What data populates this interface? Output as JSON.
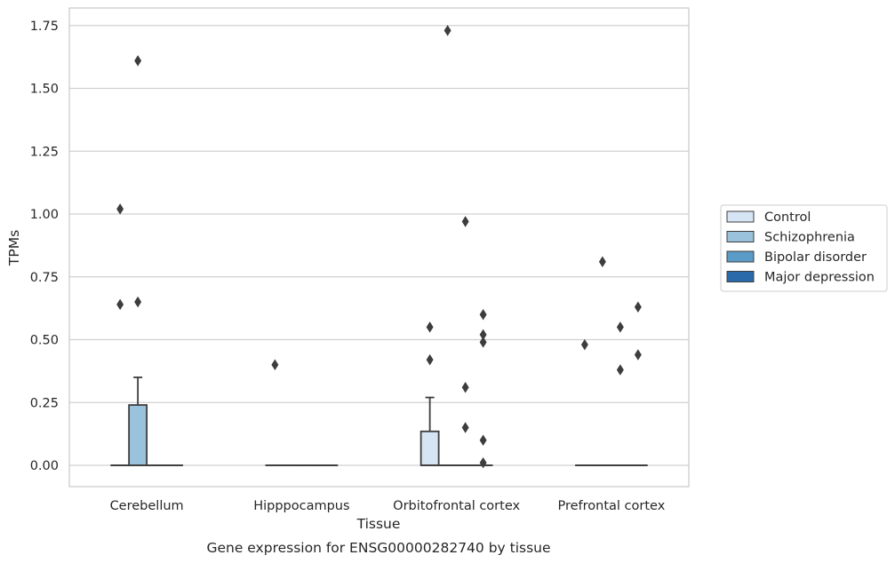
{
  "chart_data": {
    "type": "boxplot",
    "title": "",
    "caption": "Gene expression for ENSG00000282740 by tissue",
    "xlabel": "Tissue",
    "ylabel": "TPMs",
    "ylim": [
      -0.085,
      1.82
    ],
    "yticks": [
      0.0,
      0.25,
      0.5,
      0.75,
      1.0,
      1.25,
      1.5,
      1.75
    ],
    "ytick_labels": [
      "0.00",
      "0.25",
      "0.50",
      "0.75",
      "1.00",
      "1.25",
      "1.50",
      "1.75"
    ],
    "grid": "horizontal",
    "legend_position": "right",
    "categories": [
      "Cerebellum",
      "Hipppocampus",
      "Orbitofrontal cortex",
      "Prefrontal cortex"
    ],
    "series": [
      {
        "name": "Control",
        "color": "#d6e5f4",
        "boxes": [
          {
            "q1": 0,
            "median": 0,
            "q3": 0,
            "whisker_low": 0,
            "whisker_high": 0,
            "outliers": [
              1.02,
              0.64
            ]
          },
          {
            "q1": 0,
            "median": 0,
            "q3": 0,
            "whisker_low": 0,
            "whisker_high": 0,
            "outliers": [
              0.4
            ]
          },
          {
            "q1": 0,
            "median": 0,
            "q3": 0.135,
            "whisker_low": 0,
            "whisker_high": 0.27,
            "outliers": [
              0.55,
              0.42
            ]
          },
          {
            "q1": 0,
            "median": 0,
            "q3": 0,
            "whisker_low": 0,
            "whisker_high": 0,
            "outliers": [
              0.48
            ]
          }
        ]
      },
      {
        "name": "Schizophrenia",
        "color": "#9ac2dc",
        "boxes": [
          {
            "q1": 0,
            "median": 0,
            "q3": 0.24,
            "whisker_low": 0,
            "whisker_high": 0.35,
            "outliers": [
              1.61,
              0.65
            ]
          },
          {
            "q1": 0,
            "median": 0,
            "q3": 0,
            "whisker_low": 0,
            "whisker_high": 0,
            "outliers": []
          },
          {
            "q1": 0,
            "median": 0,
            "q3": 0,
            "whisker_low": 0,
            "whisker_high": 0,
            "outliers": [
              1.73
            ]
          },
          {
            "q1": 0,
            "median": 0,
            "q3": 0,
            "whisker_low": 0,
            "whisker_high": 0,
            "outliers": [
              0.81
            ]
          }
        ]
      },
      {
        "name": "Bipolar disorder",
        "color": "#5a9bc8",
        "boxes": [
          {
            "q1": 0,
            "median": 0,
            "q3": 0,
            "whisker_low": 0,
            "whisker_high": 0,
            "outliers": []
          },
          {
            "q1": 0,
            "median": 0,
            "q3": 0,
            "whisker_low": 0,
            "whisker_high": 0,
            "outliers": []
          },
          {
            "q1": 0,
            "median": 0,
            "q3": 0,
            "whisker_low": 0,
            "whisker_high": 0,
            "outliers": [
              0.97,
              0.31,
              0.15
            ]
          },
          {
            "q1": 0,
            "median": 0,
            "q3": 0,
            "whisker_low": 0,
            "whisker_high": 0,
            "outliers": [
              0.55,
              0.38
            ]
          }
        ]
      },
      {
        "name": "Major depression",
        "color": "#2a6aaa",
        "boxes": [
          {
            "q1": 0,
            "median": 0,
            "q3": 0,
            "whisker_low": 0,
            "whisker_high": 0,
            "outliers": []
          },
          {
            "q1": 0,
            "median": 0,
            "q3": 0,
            "whisker_low": 0,
            "whisker_high": 0,
            "outliers": []
          },
          {
            "q1": 0,
            "median": 0,
            "q3": 0,
            "whisker_low": 0,
            "whisker_high": 0,
            "outliers": [
              0.6,
              0.52,
              0.49,
              0.1,
              0.01
            ]
          },
          {
            "q1": 0,
            "median": 0,
            "q3": 0,
            "whisker_low": 0,
            "whisker_high": 0,
            "outliers": [
              0.63,
              0.44
            ]
          }
        ]
      }
    ]
  }
}
